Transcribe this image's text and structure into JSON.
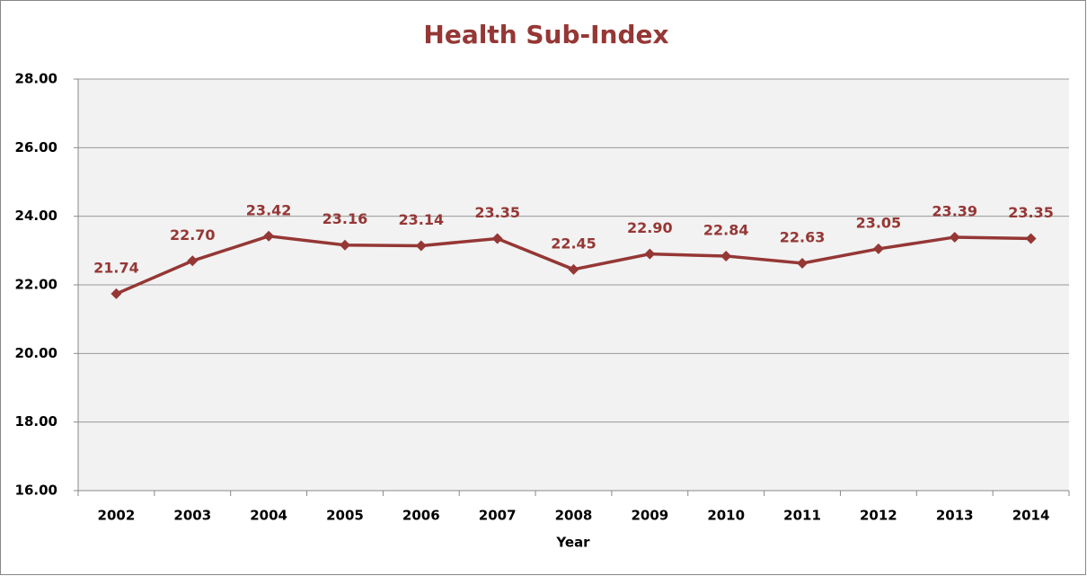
{
  "chart_data": {
    "type": "line",
    "title": "Health Sub-Index",
    "x_label": "Year",
    "categories": [
      "2002",
      "2003",
      "2004",
      "2005",
      "2006",
      "2007",
      "2008",
      "2009",
      "2010",
      "2011",
      "2012",
      "2013",
      "2014"
    ],
    "series": [
      {
        "name": "Health Sub-Index",
        "color": "#953735",
        "values": [
          21.74,
          22.7,
          23.42,
          23.16,
          23.14,
          23.35,
          22.45,
          22.9,
          22.84,
          22.63,
          23.05,
          23.39,
          23.35
        ],
        "value_labels": [
          "21.74",
          "22.70",
          "23.42",
          "23.16",
          "23.14",
          "23.35",
          "22.45",
          "22.90",
          "22.84",
          "22.63",
          "23.05",
          "23.39",
          "23.35"
        ]
      }
    ],
    "ylim": [
      16,
      28
    ],
    "yticks": [
      {
        "value": 16,
        "label": "16.00"
      },
      {
        "value": 18,
        "label": "18.00"
      },
      {
        "value": 20,
        "label": "20.00"
      },
      {
        "value": 22,
        "label": "22.00"
      },
      {
        "value": 24,
        "label": "24.00"
      },
      {
        "value": 26,
        "label": "26.00"
      },
      {
        "value": 28,
        "label": "28.00"
      }
    ],
    "grid": true
  }
}
